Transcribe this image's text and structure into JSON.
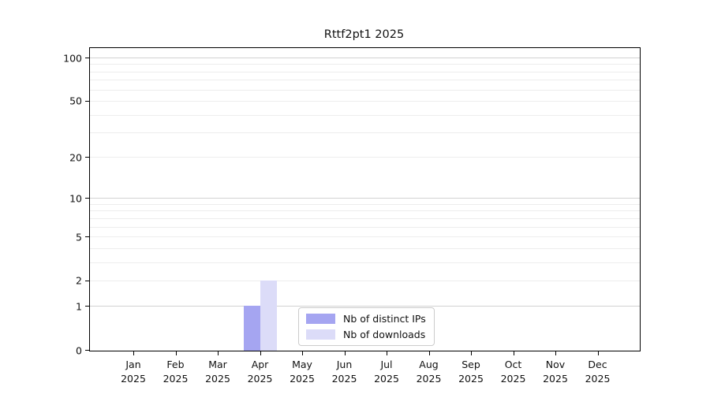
{
  "chart_data": {
    "type": "bar",
    "title": "Rttf2pt1 2025",
    "categories": [
      "Jan",
      "Feb",
      "Mar",
      "Apr",
      "May",
      "Jun",
      "Jul",
      "Aug",
      "Sep",
      "Oct",
      "Nov",
      "Dec"
    ],
    "x_year_label": "2025",
    "series": [
      {
        "name": "Nb of distinct IPs",
        "color": "#a5a5f1",
        "values": [
          0,
          0,
          0,
          1,
          0,
          0,
          0,
          0,
          0,
          0,
          0,
          0
        ]
      },
      {
        "name": "Nb of downloads",
        "color": "#dcdcf8",
        "values": [
          0,
          0,
          0,
          2,
          0,
          0,
          0,
          0,
          0,
          0,
          0,
          0
        ]
      }
    ],
    "y_axis": {
      "scale": "log1p",
      "tick_labels": [
        0,
        1,
        2,
        5,
        10,
        20,
        50,
        100
      ],
      "major_gridlines": [
        1,
        10,
        100
      ],
      "minor_gridlines": [
        2,
        3,
        4,
        5,
        6,
        7,
        8,
        9,
        20,
        30,
        40,
        50,
        60,
        70,
        80,
        90
      ],
      "min": 0,
      "max": 116
    },
    "legend": {
      "position": "lower-center",
      "entries": [
        "Nb of distinct IPs",
        "Nb of downloads"
      ]
    },
    "grid": true,
    "background": "#ffffff"
  }
}
